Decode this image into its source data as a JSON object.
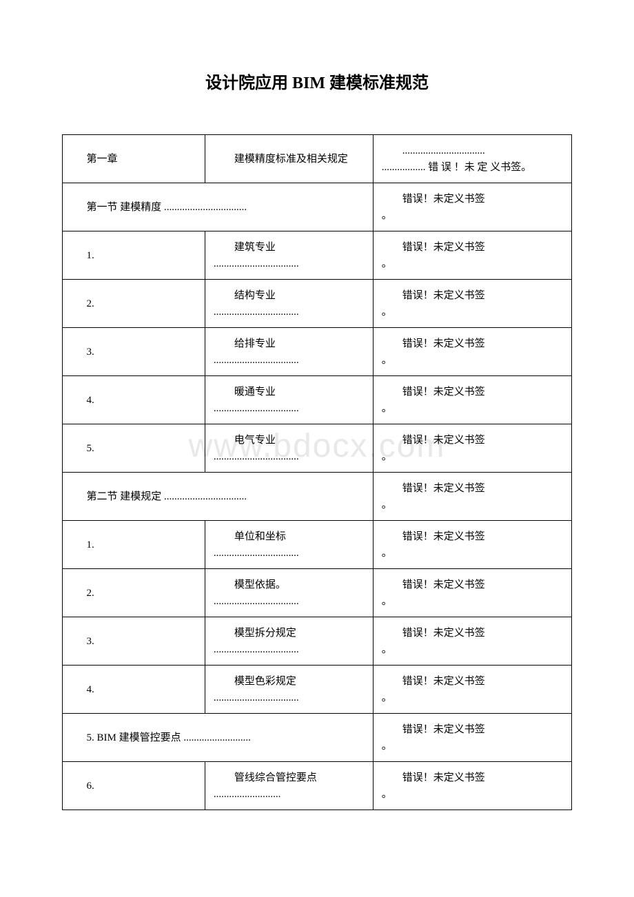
{
  "title": "设计院应用 BIM 建模标准规范",
  "watermark": "www.bdocx.com",
  "errorText": "错误！未定义书签。",
  "errorTextMultiline1": "................................",
  "errorTextMultiline2": "................. 错 误 ！未 定 义书签。",
  "rows": [
    {
      "col1": "第一章",
      "col2": "建模精度标准及相关规定",
      "col3_type": "multiline"
    },
    {
      "col1": "第一节 建模精度 ................................",
      "col2": "",
      "spanFirst": true,
      "col3_type": "error"
    },
    {
      "col1": "1.",
      "col2_top": "建筑专业",
      "col2_dots": ".................................",
      "col3_type": "error"
    },
    {
      "col1": "2.",
      "col2_top": "结构专业",
      "col2_dots": ".................................",
      "col3_type": "error"
    },
    {
      "col1": "3.",
      "col2_top": "给排专业",
      "col2_dots": ".................................",
      "col3_type": "error"
    },
    {
      "col1": "4.",
      "col2_top": "暖通专业",
      "col2_dots": ".................................",
      "col3_type": "error"
    },
    {
      "col1": "5.",
      "col2_top": "电气专业",
      "col2_dots": ".................................",
      "col3_type": "error"
    },
    {
      "col1": "第二节 建模规定 ................................",
      "col2": "",
      "spanFirst": true,
      "col3_type": "error"
    },
    {
      "col1": "1.",
      "col2_top": "单位和坐标",
      "col2_dots": ".................................",
      "col3_type": "error"
    },
    {
      "col1": "2.",
      "col2_top": "模型依据。",
      "col2_dots": ".................................",
      "col3_type": "error"
    },
    {
      "col1": "3.",
      "col2_top": "模型拆分规定",
      "col2_dots": ".................................",
      "col3_type": "error"
    },
    {
      "col1": "4.",
      "col2_top": "模型色彩规定",
      "col2_dots": ".................................",
      "col3_type": "error"
    },
    {
      "col1": "5. BIM 建模管控要点 ..........................",
      "col2": "",
      "spanFirst": true,
      "col3_type": "error"
    },
    {
      "col1": "6.",
      "col2_top": "管线综合管控要点",
      "col2_dots": "..........................",
      "col3_type": "error"
    }
  ]
}
